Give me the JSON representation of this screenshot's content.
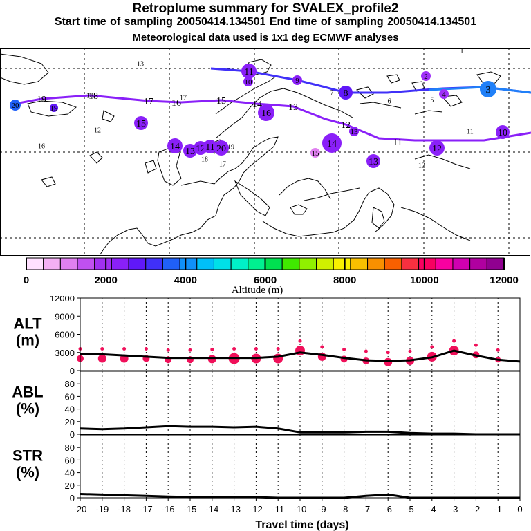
{
  "header": {
    "title": "Retroplume summary for SVALEX_profile2",
    "sampling": "Start time of sampling 20050414.134501     End time of sampling 20050414.134501",
    "met": "Meteorological data used is 1x1 deg ECMWF analyses"
  },
  "colorbar": {
    "title": "Altitude (m)",
    "ticks": [
      "0",
      "2000",
      "4000",
      "6000",
      "8000",
      "10000",
      "12000"
    ],
    "colors": [
      "#ffe0ff",
      "#f4b0f4",
      "#e080f0",
      "#c050f0",
      "#a030f0",
      "#8a20f8",
      "#6018f8",
      "#4030f8",
      "#2060f8",
      "#1090f8",
      "#00c0f8",
      "#00e0e8",
      "#00f0c8",
      "#00f090",
      "#00e050",
      "#40e800",
      "#90f000",
      "#d0f000",
      "#f8f000",
      "#f8c000",
      "#f89000",
      "#f86000",
      "#f83040",
      "#f80060",
      "#f800a0",
      "#d000b0",
      "#b000a0",
      "#900090"
    ]
  },
  "map": {
    "trajectory_labels": [
      {
        "text": "20",
        "kind": "traj"
      },
      {
        "text": "19",
        "kind": "traj"
      },
      {
        "text": "18",
        "kind": "traj"
      },
      {
        "text": "17",
        "kind": "traj"
      },
      {
        "text": "16",
        "kind": "traj"
      },
      {
        "text": "15",
        "kind": "traj"
      },
      {
        "text": "14",
        "kind": "traj"
      },
      {
        "text": "13",
        "kind": "traj"
      },
      {
        "text": "12",
        "kind": "traj"
      },
      {
        "text": "11",
        "kind": "traj"
      }
    ],
    "upper_labels": [
      {
        "text": "1"
      },
      {
        "text": "2"
      },
      {
        "text": "3"
      }
    ],
    "clusters": [
      {
        "text": "20"
      },
      {
        "text": "13"
      },
      {
        "text": "19"
      },
      {
        "text": "18"
      },
      {
        "text": "12"
      },
      {
        "text": "17"
      },
      {
        "text": "16"
      },
      {
        "text": "15"
      },
      {
        "text": "14"
      },
      {
        "text": "13"
      },
      {
        "text": "12"
      },
      {
        "text": "11"
      },
      {
        "text": "20"
      },
      {
        "text": "19"
      },
      {
        "text": "18"
      },
      {
        "text": "17"
      },
      {
        "text": "16"
      },
      {
        "text": "15"
      },
      {
        "text": "14"
      },
      {
        "text": "13"
      },
      {
        "text": "12"
      },
      {
        "text": "11"
      },
      {
        "text": "10"
      },
      {
        "text": "9"
      },
      {
        "text": "8"
      },
      {
        "text": "7"
      },
      {
        "text": "6"
      },
      {
        "text": "5"
      },
      {
        "text": "4"
      },
      {
        "text": "3"
      },
      {
        "text": "2"
      },
      {
        "text": "1"
      },
      {
        "text": "13"
      },
      {
        "text": "12"
      },
      {
        "text": "11"
      },
      {
        "text": "10"
      }
    ]
  },
  "chart_data": [
    {
      "type": "line",
      "panel": "ALT",
      "ylabel": "ALT\n(m)",
      "ylabel_lines": [
        "ALT",
        "(m)"
      ],
      "ylim": [
        0,
        12000
      ],
      "yticks": [
        "0",
        "3000",
        "6000",
        "9000",
        "12000"
      ],
      "x": [
        -20,
        -19,
        -18,
        -17,
        -16,
        -15,
        -14,
        -13,
        -12,
        -11,
        -10,
        -9,
        -8,
        -7,
        -6,
        -5,
        -4,
        -3,
        -2,
        -1,
        0
      ],
      "values": [
        2700,
        2700,
        2500,
        2300,
        2100,
        2100,
        2100,
        2100,
        2100,
        2300,
        3000,
        2600,
        2100,
        1700,
        1600,
        1700,
        2200,
        3300,
        2500,
        1800,
        1500
      ],
      "dots_x": [
        -20,
        -19,
        -18,
        -17,
        -16,
        -15,
        -14,
        -13,
        -12,
        -11,
        -10,
        -9,
        -8,
        -7,
        -6,
        -5,
        -4,
        -3,
        -2,
        -1
      ],
      "dots_y": [
        2000,
        2000,
        2000,
        2000,
        1800,
        1800,
        1900,
        2000,
        2000,
        2000,
        3300,
        2300,
        1900,
        1600,
        1400,
        1600,
        2300,
        3300,
        2600,
        1800
      ],
      "dots_r": [
        5,
        6,
        6,
        5,
        5,
        5,
        6,
        8,
        7,
        7,
        7,
        6,
        5,
        5,
        6,
        6,
        7,
        7,
        5,
        4
      ]
    },
    {
      "type": "line",
      "panel": "ABL",
      "ylabel_lines": [
        "ABL",
        "(%)"
      ],
      "ylim": [
        0,
        100
      ],
      "yticks": [
        "0",
        "20",
        "40",
        "60",
        "80"
      ],
      "x": [
        -20,
        -19,
        -18,
        -17,
        -16,
        -15,
        -14,
        -13,
        -12,
        -11,
        -10,
        -9,
        -8,
        -7,
        -6,
        -5,
        -4,
        -3,
        -2,
        -1,
        0
      ],
      "values": [
        9,
        8,
        9,
        11,
        13,
        12,
        12,
        11,
        12,
        9,
        3,
        3,
        3,
        4,
        4,
        2,
        1,
        1,
        0,
        0,
        0
      ]
    },
    {
      "type": "line",
      "panel": "STR",
      "ylabel_lines": [
        "STR",
        "(%)"
      ],
      "ylim": [
        0,
        100
      ],
      "yticks": [
        "0",
        "20",
        "40",
        "60",
        "80"
      ],
      "x": [
        -20,
        -19,
        -18,
        -17,
        -16,
        -15,
        -14,
        -13,
        -12,
        -11,
        -10,
        -9,
        -8,
        -7,
        -6,
        -5,
        -4,
        -3,
        -2,
        -1,
        0
      ],
      "values": [
        6,
        5,
        4,
        3,
        2,
        1,
        1,
        1,
        1,
        0,
        0,
        0,
        0,
        3,
        5,
        0,
        0,
        0,
        0,
        0,
        0
      ]
    }
  ],
  "xaxis": {
    "ticks": [
      "-20",
      "-19",
      "-18",
      "-17",
      "-16",
      "-15",
      "-14",
      "-13",
      "-12",
      "-11",
      "-10",
      "-9",
      "-8",
      "-7",
      "-6",
      "-5",
      "-4",
      "-3",
      "-2",
      "-1",
      "0"
    ],
    "title": "Travel time (days)"
  },
  "style": {
    "line": "#000000",
    "dot": "#f0105a",
    "grid": "#000000"
  }
}
